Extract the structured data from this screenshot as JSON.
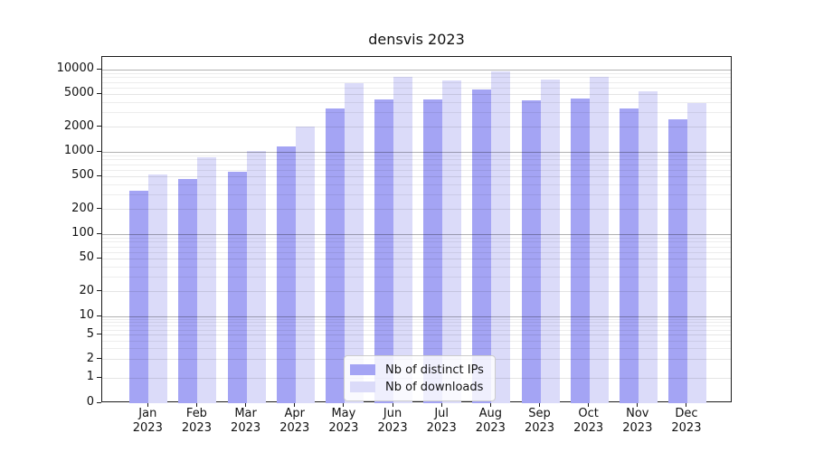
{
  "chart_data": {
    "type": "bar",
    "title": "densvis 2023",
    "xlabel": "",
    "ylabel": "",
    "year_label": "2023",
    "categories": [
      "Jan",
      "Feb",
      "Mar",
      "Apr",
      "May",
      "Jun",
      "Jul",
      "Aug",
      "Sep",
      "Oct",
      "Nov",
      "Dec"
    ],
    "series": [
      {
        "name": "Nb of distinct IPs",
        "color": "#a4a4f4",
        "values": [
          340,
          470,
          580,
          1170,
          3400,
          4300,
          4300,
          5700,
          4200,
          4500,
          3400,
          2500
        ]
      },
      {
        "name": "Nb of downloads",
        "color": "#dbdbf9",
        "values": [
          530,
          870,
          1020,
          2030,
          6800,
          8200,
          7400,
          9500,
          7600,
          8200,
          5450,
          3950
        ]
      }
    ],
    "yscale": "symlog",
    "yticks": [
      10000,
      5000,
      2000,
      1000,
      500,
      200,
      100,
      50,
      20,
      10,
      5,
      2,
      1,
      0
    ],
    "ylim": [
      0,
      14000
    ],
    "grid": "on",
    "legend_position": "lower center inside plot"
  }
}
